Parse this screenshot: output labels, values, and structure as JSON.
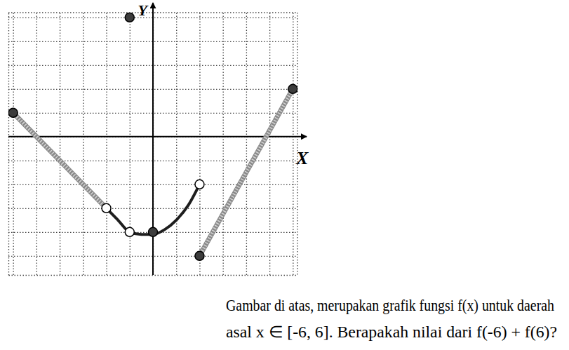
{
  "chart_data": {
    "type": "line",
    "x_label": "X",
    "y_label": "Y",
    "xlim": [
      -6.2,
      6.2
    ],
    "ylim": [
      -5.8,
      5.2
    ],
    "xticks": [
      -6,
      -5,
      -4,
      -3,
      -2,
      -1,
      0,
      1,
      2,
      3,
      4,
      5,
      6
    ],
    "yticks": [
      -5,
      -4,
      -3,
      -2,
      -1,
      0,
      1,
      2,
      3,
      4,
      5
    ],
    "grid": true,
    "tick_labels": false,
    "series": [
      {
        "type": "line",
        "color": "#8a8a8a",
        "line_style": "hatched",
        "x": [
          -6,
          -2
        ],
        "values": [
          1,
          -3
        ]
      },
      {
        "type": "line",
        "color": "#1e1e1e",
        "line_style": "solid",
        "x": [
          -2,
          -1.5,
          -1,
          -0.5,
          0,
          0.5,
          1,
          1.5,
          2
        ],
        "values": [
          -3,
          -3.5,
          -4,
          -4.1,
          -4.1,
          -3.9,
          -3.5,
          -2.9,
          -2
        ]
      },
      {
        "type": "line",
        "color": "#8a8a8a",
        "line_style": "hatched",
        "x": [
          2,
          6
        ],
        "values": [
          -5,
          2
        ]
      },
      {
        "type": "scatter",
        "marker": "circle",
        "color": "#3c3c3c",
        "x": [
          -6,
          0,
          2,
          6,
          -1
        ],
        "values": [
          1,
          -4,
          -5,
          2,
          5
        ]
      },
      {
        "type": "scatter",
        "marker": "circle",
        "color": "#ffffff",
        "x": [
          -2,
          -1,
          2
        ],
        "values": [
          -3,
          -4,
          -2
        ]
      }
    ]
  },
  "question": [
    "Gambar di atas, merupakan grafik fungsi f(x) untuk daerah",
    "asal x ∈ [-6, 6]. Berapakah nilai dari f(-6) + f(6)?"
  ]
}
